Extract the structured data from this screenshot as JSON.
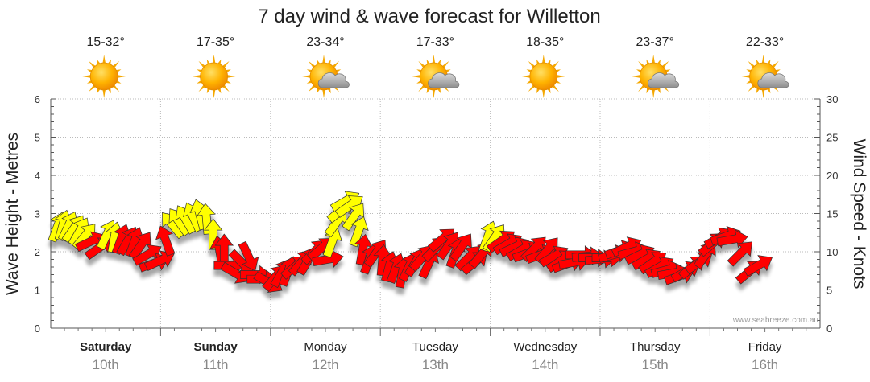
{
  "chart_data": {
    "type": "scatter",
    "title": "7 day wind & wave forecast for Willetton",
    "y_left_label": "Wave Height - Metres",
    "y_right_label": "Wind Speed - Knots",
    "y_left_ticks": [
      "0",
      "1",
      "2",
      "3",
      "4",
      "5",
      "6"
    ],
    "y_right_ticks": [
      "0",
      "5",
      "10",
      "15",
      "20",
      "25",
      "30"
    ],
    "y_left_range": [
      0,
      6
    ],
    "y_right_range": [
      0,
      30
    ],
    "grid": true,
    "days": [
      {
        "name": "Saturday",
        "date": "10th",
        "temp": "15-32°",
        "weather": "sunny",
        "bold": true
      },
      {
        "name": "Sunday",
        "date": "11th",
        "temp": "17-35°",
        "weather": "sunny",
        "bold": true
      },
      {
        "name": "Monday",
        "date": "12th",
        "temp": "23-34°",
        "weather": "partly-cloudy",
        "bold": false
      },
      {
        "name": "Tuesday",
        "date": "13th",
        "temp": "17-33°",
        "weather": "partly-cloudy",
        "bold": false
      },
      {
        "name": "Wednesday",
        "date": "14th",
        "temp": "18-35°",
        "weather": "sunny",
        "bold": false
      },
      {
        "name": "Thursday",
        "date": "15th",
        "temp": "23-37°",
        "weather": "partly-cloudy",
        "bold": false
      },
      {
        "name": "Friday",
        "date": "16th",
        "temp": "22-33°",
        "weather": "partly-cloudy",
        "bold": false
      }
    ],
    "arrow_colors": {
      "light_wind": "#ffff00",
      "strong_wind": "#ff0000",
      "outline": "#333333"
    },
    "wind_series": {
      "name": "Wind",
      "points": [
        {
          "day": 0.0,
          "knots": 13.2,
          "dir": 200,
          "strong": false
        },
        {
          "day": 0.05,
          "knots": 13.4,
          "dir": 195,
          "strong": false
        },
        {
          "day": 0.1,
          "knots": 13.3,
          "dir": 205,
          "strong": false
        },
        {
          "day": 0.15,
          "knots": 13.0,
          "dir": 215,
          "strong": false
        },
        {
          "day": 0.2,
          "knots": 12.6,
          "dir": 210,
          "strong": false
        },
        {
          "day": 0.25,
          "knots": 12.0,
          "dir": 220,
          "strong": false
        },
        {
          "day": 0.3,
          "knots": 11.3,
          "dir": 245,
          "strong": true
        },
        {
          "day": 0.38,
          "knots": 10.5,
          "dir": 235,
          "strong": true
        },
        {
          "day": 0.45,
          "knots": 12.2,
          "dir": 205,
          "strong": false
        },
        {
          "day": 0.52,
          "knots": 11.8,
          "dir": 190,
          "strong": false
        },
        {
          "day": 0.58,
          "knots": 11.6,
          "dir": 200,
          "strong": true
        },
        {
          "day": 0.64,
          "knots": 11.4,
          "dir": 210,
          "strong": true
        },
        {
          "day": 0.7,
          "knots": 11.2,
          "dir": 200,
          "strong": true
        },
        {
          "day": 0.76,
          "knots": 10.8,
          "dir": 215,
          "strong": true
        },
        {
          "day": 0.82,
          "knots": 9.6,
          "dir": 240,
          "strong": true
        },
        {
          "day": 0.88,
          "knots": 8.5,
          "dir": 250,
          "strong": true
        },
        {
          "day": 0.93,
          "knots": 8.8,
          "dir": 245,
          "strong": true
        },
        {
          "day": 0.99,
          "knots": 11.4,
          "dir": 160,
          "strong": true
        },
        {
          "day": 1.05,
          "knots": 13.5,
          "dir": 140,
          "strong": false
        },
        {
          "day": 1.11,
          "knots": 13.9,
          "dir": 145,
          "strong": false
        },
        {
          "day": 1.17,
          "knots": 14.2,
          "dir": 150,
          "strong": false
        },
        {
          "day": 1.24,
          "knots": 14.5,
          "dir": 155,
          "strong": false
        },
        {
          "day": 1.3,
          "knots": 14.8,
          "dir": 165,
          "strong": false
        },
        {
          "day": 1.36,
          "knots": 14.2,
          "dir": 175,
          "strong": false
        },
        {
          "day": 1.42,
          "knots": 12.2,
          "dir": 180,
          "strong": false
        },
        {
          "day": 1.48,
          "knots": 10.0,
          "dir": 170,
          "strong": true
        },
        {
          "day": 1.52,
          "knots": 10.2,
          "dir": 180,
          "strong": true
        },
        {
          "day": 1.56,
          "knots": 8.2,
          "dir": 270,
          "strong": true
        },
        {
          "day": 1.62,
          "knots": 7.2,
          "dir": 300,
          "strong": true
        },
        {
          "day": 1.68,
          "knots": 8.6,
          "dir": 315,
          "strong": true
        },
        {
          "day": 1.74,
          "knots": 9.4,
          "dir": 335,
          "strong": true
        },
        {
          "day": 1.8,
          "knots": 7.0,
          "dir": 270,
          "strong": true
        },
        {
          "day": 1.86,
          "knots": 6.4,
          "dir": 270,
          "strong": true
        },
        {
          "day": 1.92,
          "knots": 6.0,
          "dir": 300,
          "strong": true
        },
        {
          "day": 1.98,
          "knots": 6.6,
          "dir": 220,
          "strong": true
        },
        {
          "day": 2.04,
          "knots": 7.2,
          "dir": 210,
          "strong": true
        },
        {
          "day": 2.1,
          "knots": 7.4,
          "dir": 200,
          "strong": true
        },
        {
          "day": 2.16,
          "knots": 8.0,
          "dir": 230,
          "strong": true
        },
        {
          "day": 2.22,
          "knots": 8.6,
          "dir": 220,
          "strong": true
        },
        {
          "day": 2.28,
          "knots": 8.8,
          "dir": 210,
          "strong": true
        },
        {
          "day": 2.34,
          "knots": 10.0,
          "dir": 225,
          "strong": true
        },
        {
          "day": 2.4,
          "knots": 10.4,
          "dir": 230,
          "strong": true
        },
        {
          "day": 2.46,
          "knots": 9.0,
          "dir": 260,
          "strong": true
        },
        {
          "day": 2.5,
          "knots": 11.2,
          "dir": 200,
          "strong": false
        },
        {
          "day": 2.54,
          "knots": 13.8,
          "dir": 215,
          "strong": false
        },
        {
          "day": 2.58,
          "knots": 15.4,
          "dir": 230,
          "strong": false
        },
        {
          "day": 2.62,
          "knots": 16.6,
          "dir": 240,
          "strong": false
        },
        {
          "day": 2.66,
          "knots": 16.0,
          "dir": 235,
          "strong": false
        },
        {
          "day": 2.7,
          "knots": 14.6,
          "dir": 215,
          "strong": false
        },
        {
          "day": 2.74,
          "knots": 12.6,
          "dir": 200,
          "strong": false
        },
        {
          "day": 2.78,
          "knots": 10.2,
          "dir": 190,
          "strong": true
        },
        {
          "day": 2.84,
          "knots": 9.0,
          "dir": 200,
          "strong": true
        },
        {
          "day": 2.9,
          "knots": 9.8,
          "dir": 215,
          "strong": true
        },
        {
          "day": 2.96,
          "knots": 8.8,
          "dir": 185,
          "strong": true
        },
        {
          "day": 3.02,
          "knots": 8.0,
          "dir": 195,
          "strong": true
        },
        {
          "day": 3.08,
          "knots": 7.8,
          "dir": 200,
          "strong": true
        },
        {
          "day": 3.14,
          "knots": 7.2,
          "dir": 190,
          "strong": true
        },
        {
          "day": 3.2,
          "knots": 8.0,
          "dir": 205,
          "strong": true
        },
        {
          "day": 3.26,
          "knots": 8.6,
          "dir": 210,
          "strong": true
        },
        {
          "day": 3.32,
          "knots": 9.2,
          "dir": 220,
          "strong": true
        },
        {
          "day": 3.38,
          "knots": 8.4,
          "dir": 205,
          "strong": true
        },
        {
          "day": 3.44,
          "knots": 10.4,
          "dir": 225,
          "strong": true
        },
        {
          "day": 3.5,
          "knots": 11.6,
          "dir": 230,
          "strong": true
        },
        {
          "day": 3.56,
          "knots": 10.8,
          "dir": 215,
          "strong": true
        },
        {
          "day": 3.62,
          "knots": 9.8,
          "dir": 200,
          "strong": true
        },
        {
          "day": 3.68,
          "knots": 10.6,
          "dir": 215,
          "strong": true
        },
        {
          "day": 3.74,
          "knots": 9.2,
          "dir": 225,
          "strong": true
        },
        {
          "day": 3.8,
          "knots": 8.6,
          "dir": 230,
          "strong": true
        },
        {
          "day": 3.86,
          "knots": 9.6,
          "dir": 220,
          "strong": true
        },
        {
          "day": 3.92,
          "knots": 12.0,
          "dir": 200,
          "strong": false
        },
        {
          "day": 3.98,
          "knots": 11.8,
          "dir": 215,
          "strong": false
        },
        {
          "day": 4.04,
          "knots": 11.4,
          "dir": 235,
          "strong": true
        },
        {
          "day": 4.1,
          "knots": 11.0,
          "dir": 240,
          "strong": true
        },
        {
          "day": 4.16,
          "knots": 10.6,
          "dir": 245,
          "strong": true
        },
        {
          "day": 4.22,
          "knots": 10.2,
          "dir": 240,
          "strong": true
        },
        {
          "day": 4.28,
          "knots": 9.8,
          "dir": 250,
          "strong": true
        },
        {
          "day": 4.34,
          "knots": 10.4,
          "dir": 225,
          "strong": true
        },
        {
          "day": 4.4,
          "knots": 9.6,
          "dir": 250,
          "strong": true
        },
        {
          "day": 4.46,
          "knots": 10.2,
          "dir": 220,
          "strong": true
        },
        {
          "day": 4.52,
          "knots": 9.4,
          "dir": 240,
          "strong": true
        },
        {
          "day": 4.58,
          "knots": 8.8,
          "dir": 235,
          "strong": true
        },
        {
          "day": 4.64,
          "knots": 8.4,
          "dir": 250,
          "strong": true
        },
        {
          "day": 4.7,
          "knots": 8.6,
          "dir": 260,
          "strong": true
        },
        {
          "day": 4.76,
          "knots": 9.6,
          "dir": 270,
          "strong": true
        },
        {
          "day": 4.82,
          "knots": 9.4,
          "dir": 265,
          "strong": true
        },
        {
          "day": 4.88,
          "knots": 9.2,
          "dir": 270,
          "strong": true
        },
        {
          "day": 4.94,
          "knots": 9.0,
          "dir": 265,
          "strong": true
        },
        {
          "day": 5.0,
          "knots": 9.2,
          "dir": 270,
          "strong": true
        },
        {
          "day": 5.06,
          "knots": 9.6,
          "dir": 255,
          "strong": true
        },
        {
          "day": 5.12,
          "knots": 10.2,
          "dir": 250,
          "strong": true
        },
        {
          "day": 5.18,
          "knots": 10.6,
          "dir": 245,
          "strong": true
        },
        {
          "day": 5.24,
          "knots": 10.0,
          "dir": 255,
          "strong": true
        },
        {
          "day": 5.3,
          "knots": 9.6,
          "dir": 245,
          "strong": true
        },
        {
          "day": 5.36,
          "knots": 9.0,
          "dir": 240,
          "strong": true
        },
        {
          "day": 5.42,
          "knots": 8.6,
          "dir": 235,
          "strong": true
        },
        {
          "day": 5.48,
          "knots": 8.0,
          "dir": 240,
          "strong": true
        },
        {
          "day": 5.54,
          "knots": 7.6,
          "dir": 255,
          "strong": true
        },
        {
          "day": 5.6,
          "knots": 7.2,
          "dir": 260,
          "strong": true
        },
        {
          "day": 5.66,
          "knots": 6.8,
          "dir": 250,
          "strong": true
        },
        {
          "day": 5.72,
          "knots": 7.4,
          "dir": 240,
          "strong": true
        },
        {
          "day": 5.78,
          "knots": 8.0,
          "dir": 230,
          "strong": true
        },
        {
          "day": 5.84,
          "knots": 8.6,
          "dir": 235,
          "strong": true
        },
        {
          "day": 5.9,
          "knots": 9.6,
          "dir": 215,
          "strong": true
        },
        {
          "day": 5.96,
          "knots": 11.0,
          "dir": 230,
          "strong": true
        },
        {
          "day": 6.02,
          "knots": 11.8,
          "dir": 240,
          "strong": true
        },
        {
          "day": 6.08,
          "knots": 12.0,
          "dir": 250,
          "strong": true
        },
        {
          "day": 6.14,
          "knots": 11.6,
          "dir": 260,
          "strong": true
        },
        {
          "day": 6.22,
          "knots": 9.8,
          "dir": 225,
          "strong": true
        },
        {
          "day": 6.3,
          "knots": 7.4,
          "dir": 230,
          "strong": true
        },
        {
          "day": 6.38,
          "knots": 8.2,
          "dir": 240,
          "strong": true
        }
      ]
    }
  },
  "credit": "www.seabreeze.com.au"
}
